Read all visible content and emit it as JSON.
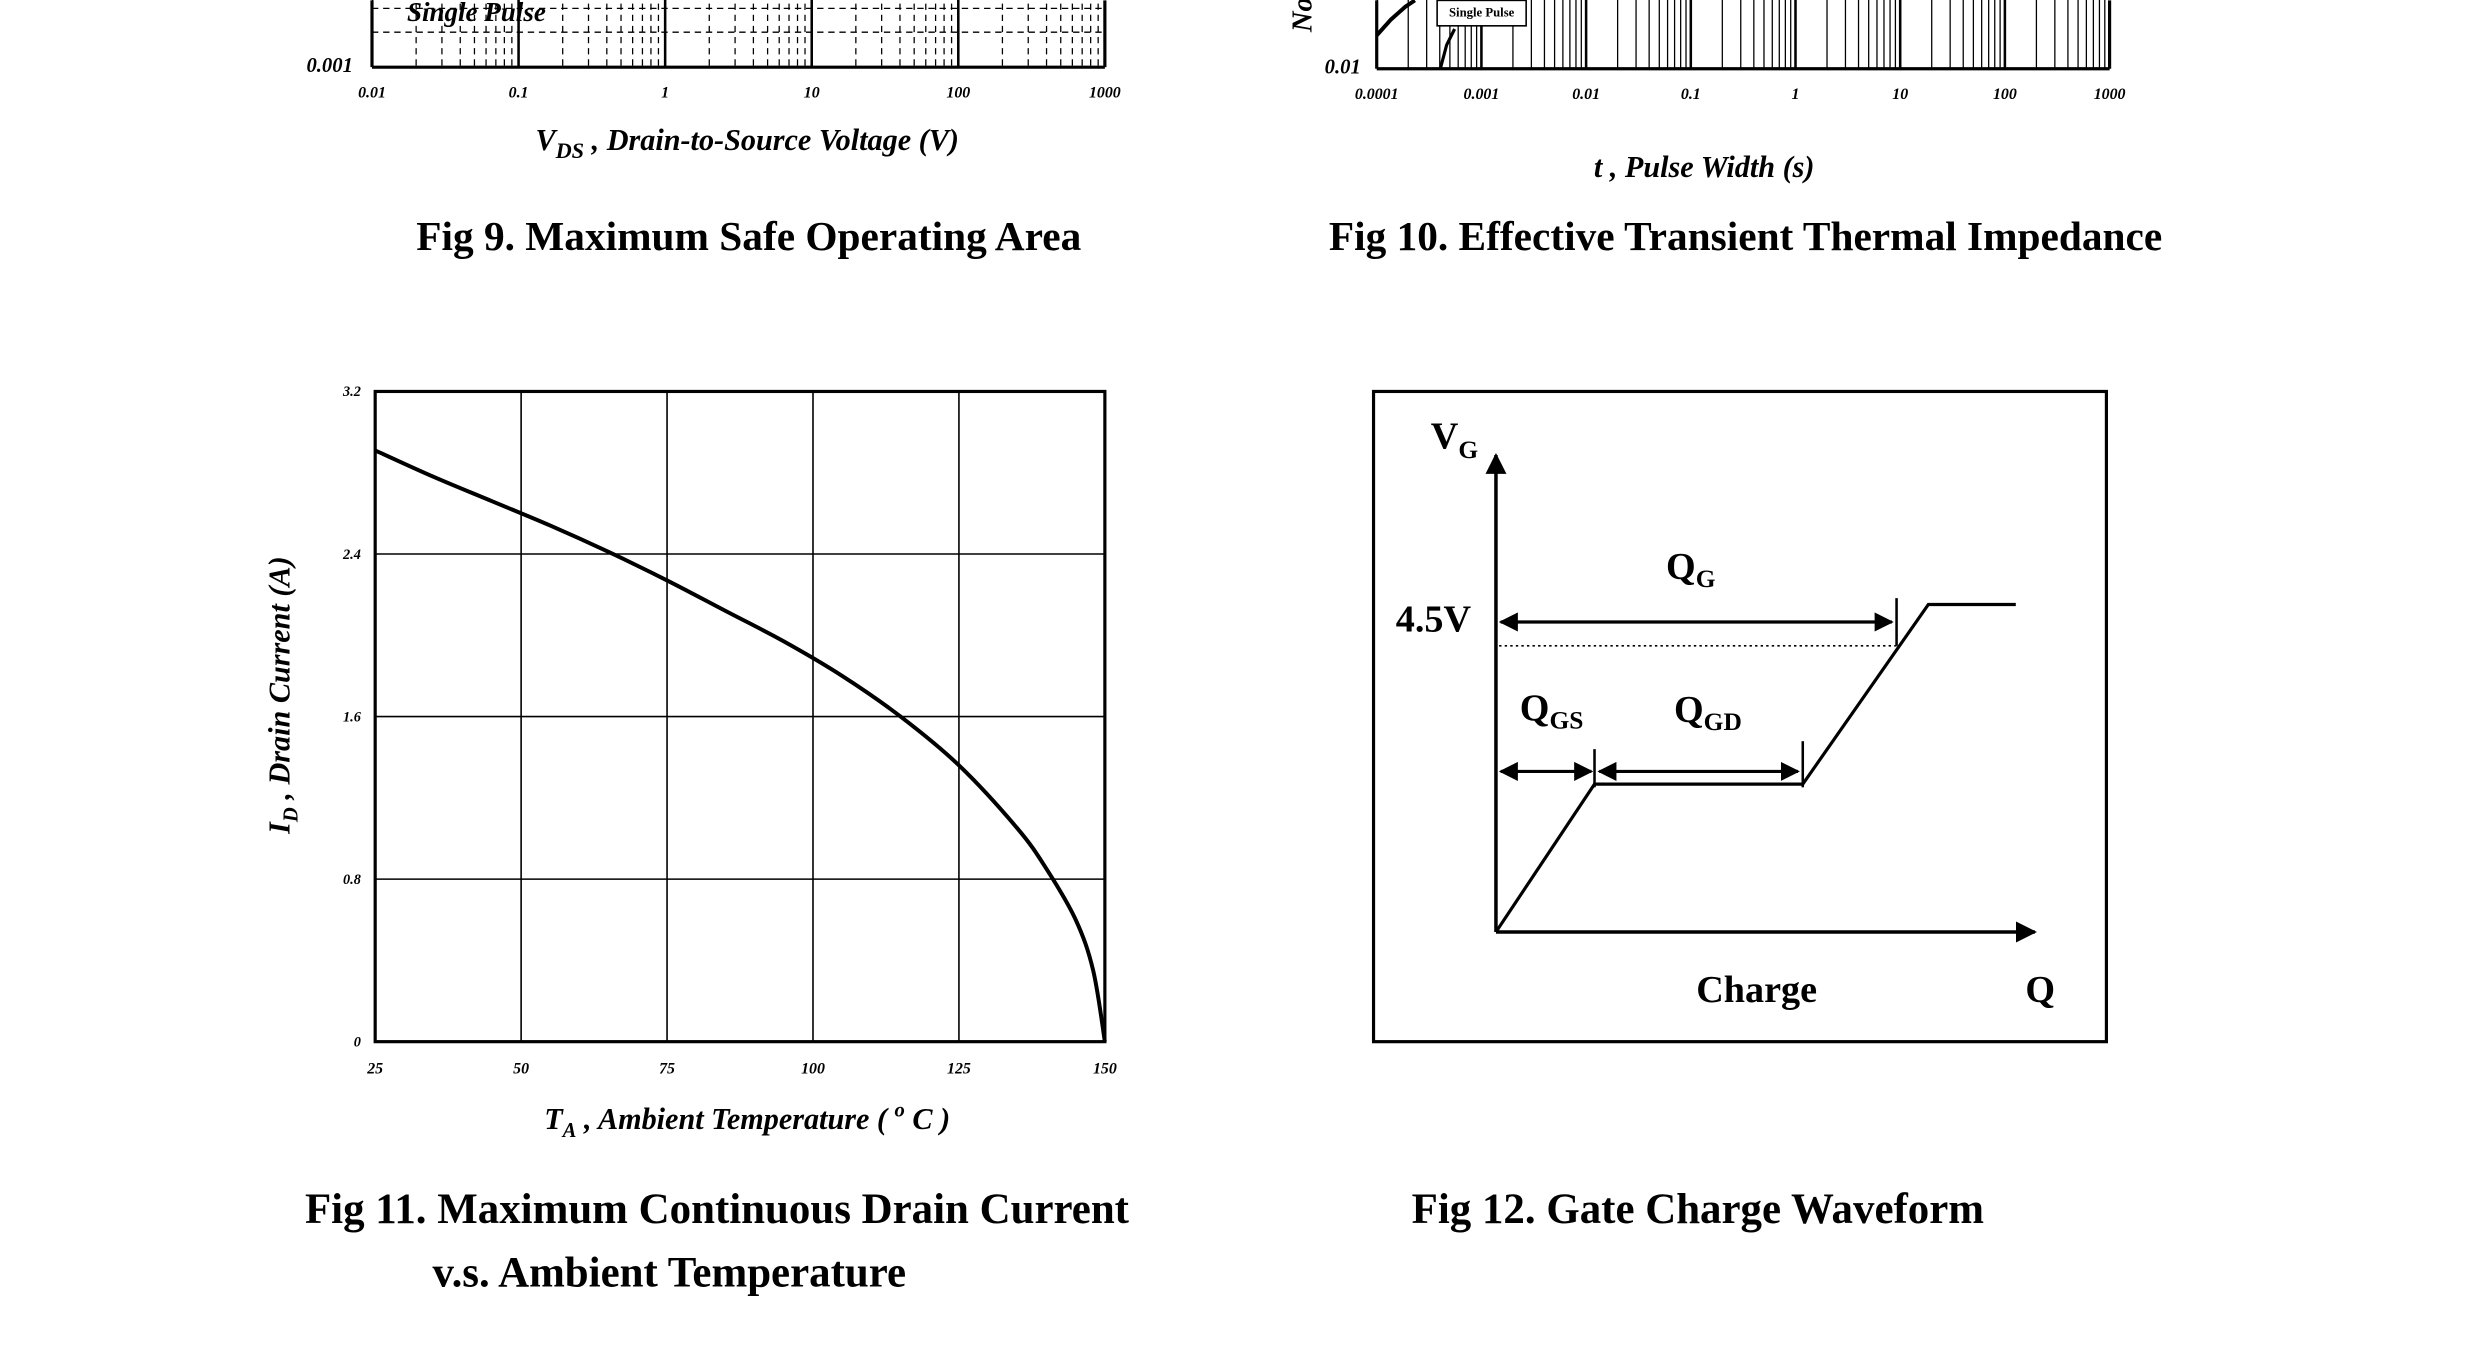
{
  "figures": {
    "fig9": {
      "caption": "Fig 9. Maximum Safe Operating Area",
      "inset_label": "Single Pulse",
      "xlabel_sym": "V",
      "xlabel_sub": "DS",
      "xlabel_text": " , Drain-to-Source Voltage (V)"
    },
    "fig10": {
      "caption": "Fig 10. Effective Transient Thermal Impedance",
      "inset_label": "Single Pulse",
      "ylabel_fragment": "No",
      "xlabel": "t , Pulse Width (s)"
    },
    "fig11": {
      "caption_line1": "Fig 11. Maximum Continuous Drain Current",
      "caption_line2": "v.s. Ambient Temperature",
      "ylabel_sym": "I",
      "ylabel_sub": "D",
      "ylabel_text": " , Drain Current (A)",
      "xlabel_sym": "T",
      "xlabel_sub": "A",
      "xlabel_text": " , Ambient Temperature ( ",
      "xlabel_sup": "o",
      "xlabel_end": " C )"
    },
    "fig12": {
      "caption": "Fig 12. Gate Charge Waveform",
      "vg": "V",
      "vg_sub": "G",
      "level": "4.5V",
      "qg": "Q",
      "qg_sub": "G",
      "qgs": "Q",
      "qgs_sub": "GS",
      "qgd": "Q",
      "qgd_sub": "GD",
      "charge": "Charge",
      "q": "Q"
    }
  },
  "chart_data": [
    {
      "id": "fig9",
      "type": "line",
      "title": "Fig 9. Maximum Safe Operating Area",
      "xlabel": "V DS , Drain-to-Source Voltage (V)",
      "xscale": "log",
      "xlim": [
        0.01,
        1000
      ],
      "x_ticks": [
        "0.01",
        "0.1",
        "1",
        "10",
        "100",
        "1000"
      ],
      "y_ticks_visible": [
        "0.001"
      ],
      "annotations": [
        "Single Pulse"
      ]
    },
    {
      "id": "fig10",
      "type": "line",
      "title": "Fig 10. Effective Transient Thermal Impedance",
      "xlabel": "t , Pulse Width (s)",
      "xscale": "log",
      "xlim": [
        0.0001,
        1000
      ],
      "x_ticks": [
        "0.0001",
        "0.001",
        "0.01",
        "0.1",
        "1",
        "10",
        "100",
        "1000"
      ],
      "y_ticks_visible": [
        "0.01"
      ],
      "annotations": [
        "Single Pulse"
      ]
    },
    {
      "id": "fig11",
      "type": "line",
      "title": "Fig 11. Maximum Continuous Drain Current v.s. Ambient Temperature",
      "xlabel": "T A , Ambient Temperature ( o C )",
      "ylabel": "I D , Drain Current (A)",
      "xlim": [
        25,
        150
      ],
      "ylim": [
        0,
        3.2
      ],
      "x_ticks": [
        "25",
        "50",
        "75",
        "100",
        "125",
        "150"
      ],
      "y_ticks": [
        "0",
        "0.8",
        "1.6",
        "2.4",
        "3.2"
      ],
      "grid": true,
      "series": [
        {
          "x": [
            25,
            35,
            45,
            55,
            65,
            75,
            85,
            95,
            105,
            115,
            125,
            135,
            140,
            145,
            148,
            150
          ],
          "values": [
            2.91,
            2.78,
            2.66,
            2.54,
            2.41,
            2.27,
            2.12,
            1.97,
            1.8,
            1.6,
            1.36,
            1.05,
            0.85,
            0.6,
            0.35,
            0.0
          ]
        }
      ]
    },
    {
      "id": "fig12",
      "type": "line",
      "title": "Fig 12. Gate Charge Waveform",
      "xlabel": "Charge",
      "annotations": [
        "V G",
        "4.5V",
        "Q G",
        "Q GS",
        "Q GD",
        "Q"
      ]
    }
  ]
}
